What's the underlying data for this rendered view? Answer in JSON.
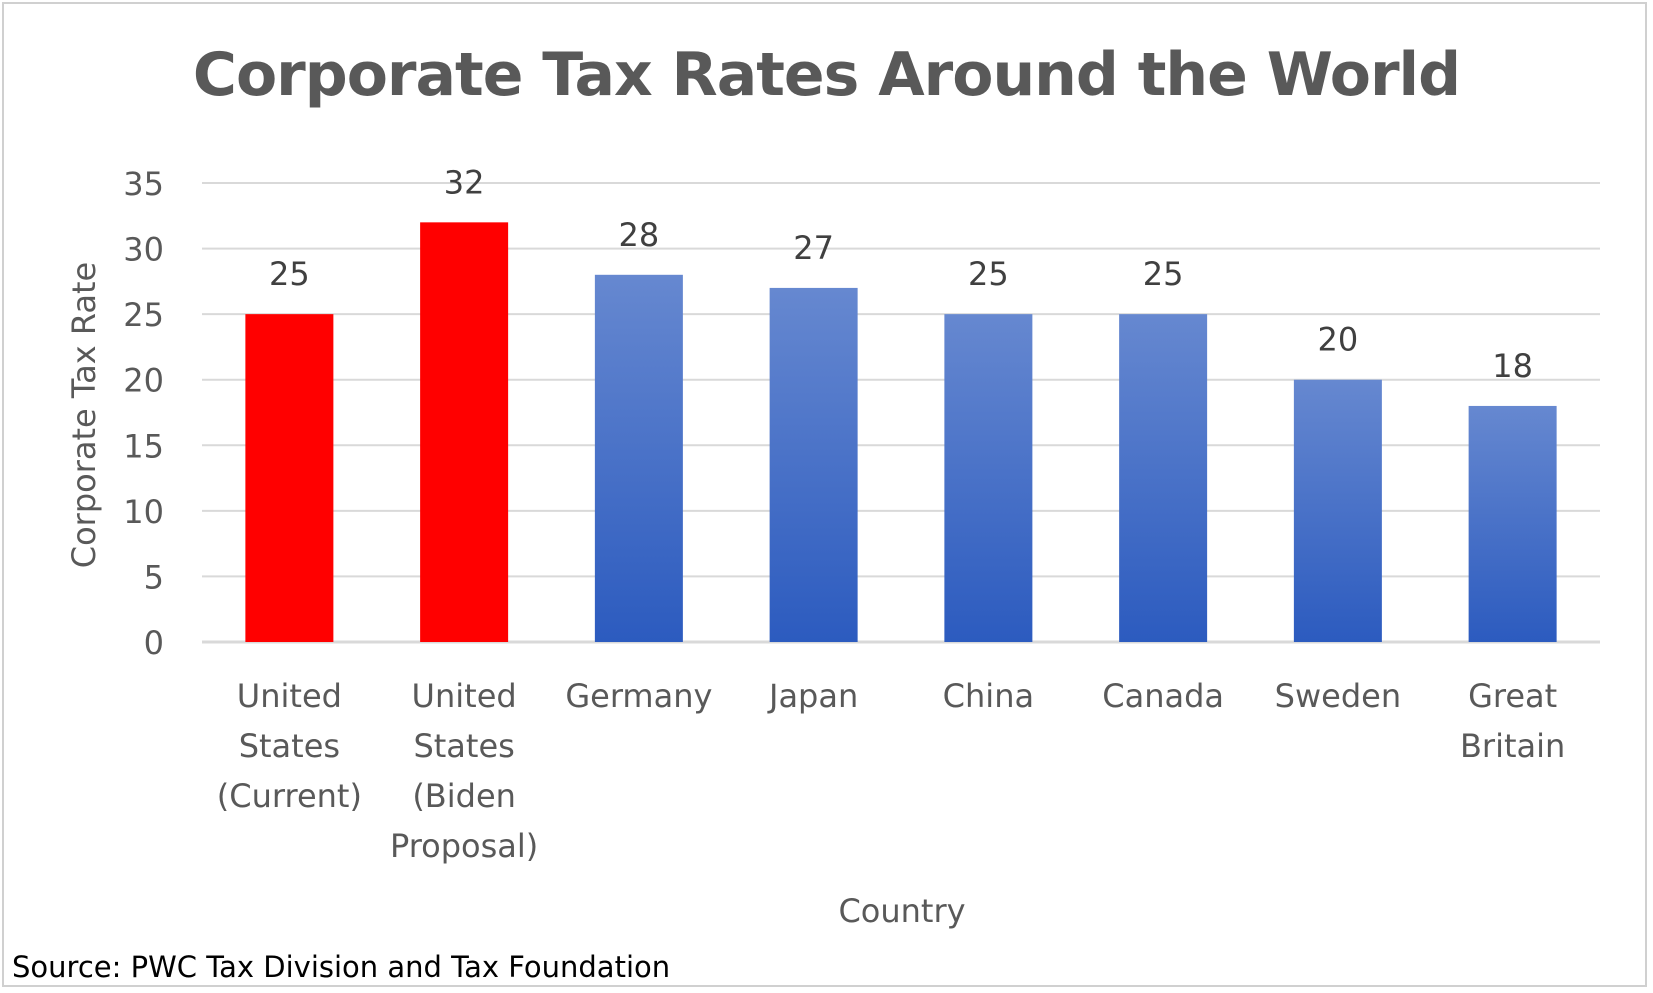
{
  "chart_data": {
    "type": "bar",
    "title": "Corporate Tax Rates Around the World",
    "xlabel": "Country",
    "ylabel": "Corporate Tax Rate",
    "categories": [
      [
        "United",
        "States",
        "(Current)"
      ],
      [
        "United",
        "States",
        "(Biden",
        "Proposal)"
      ],
      [
        "Germany"
      ],
      [
        "Japan"
      ],
      [
        "China"
      ],
      [
        "Canada"
      ],
      [
        "Sweden"
      ],
      [
        "Great",
        "Britain"
      ]
    ],
    "values": [
      25,
      32,
      28,
      27,
      25,
      25,
      20,
      18
    ],
    "ylim": [
      0,
      35
    ],
    "yticks": [
      0,
      5,
      10,
      15,
      20,
      25,
      30,
      35
    ],
    "grid": true,
    "data_labels": true,
    "colors": {
      "highlight": "#ff0000",
      "bar_top": "#6688d0",
      "bar_bottom": "#2c5bbf",
      "gridline": "#d9d9d9",
      "text": "#595959"
    },
    "highlighted_indices": [
      0,
      1
    ]
  },
  "source": "Source: PWC Tax Division and Tax Foundation"
}
